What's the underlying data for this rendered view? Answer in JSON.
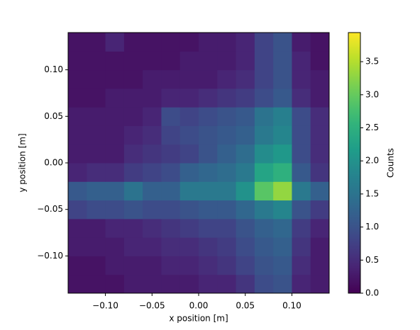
{
  "chart_data": {
    "type": "heatmap",
    "x_label": "x position [m]",
    "y_label": "y position [m]",
    "colorbar_label": "Counts",
    "colormap": "viridis",
    "xlim": [
      -0.14,
      0.14
    ],
    "ylim": [
      -0.14,
      0.14
    ],
    "clim": [
      0,
      3.94
    ],
    "xticks": [
      {
        "value": -0.1,
        "label": "−0.10"
      },
      {
        "value": -0.05,
        "label": "−0.05"
      },
      {
        "value": 0,
        "label": "0.00"
      },
      {
        "value": 0.05,
        "label": "0.05"
      },
      {
        "value": 0.1,
        "label": "0.10"
      }
    ],
    "yticks": [
      {
        "value": -0.1,
        "label": "−0.10"
      },
      {
        "value": -0.05,
        "label": "−0.05"
      },
      {
        "value": 0,
        "label": "0.00"
      },
      {
        "value": 0.05,
        "label": "0.05"
      },
      {
        "value": 0.1,
        "label": "0.10"
      }
    ],
    "cticks": [
      {
        "value": 0,
        "label": "0.0"
      },
      {
        "value": 0.5,
        "label": "0.5"
      },
      {
        "value": 1,
        "label": "1.0"
      },
      {
        "value": 1.5,
        "label": "1.5"
      },
      {
        "value": 2,
        "label": "2.0"
      },
      {
        "value": 2.5,
        "label": "2.5"
      },
      {
        "value": 3,
        "label": "3.0"
      },
      {
        "value": 3.5,
        "label": "3.5"
      }
    ],
    "x_bins": [
      -0.14,
      -0.12,
      -0.1,
      -0.08,
      -0.06,
      -0.04,
      -0.02,
      0,
      0.02,
      0.04,
      0.06,
      0.08,
      0.1,
      0.12,
      0.14
    ],
    "y_bins": [
      -0.14,
      -0.12,
      -0.1,
      -0.08,
      -0.06,
      -0.04,
      -0.02,
      0,
      0.02,
      0.04,
      0.06,
      0.08,
      0.1,
      0.12,
      0.14
    ],
    "z": [
      [
        0.2,
        0.2,
        0.2,
        0.3,
        0.3,
        0.3,
        0.3,
        0.4,
        0.4,
        0.6,
        0.9,
        1.0,
        0.4,
        0.3
      ],
      [
        0.2,
        0.2,
        0.3,
        0.3,
        0.3,
        0.4,
        0.4,
        0.5,
        0.6,
        0.8,
        1.0,
        1.1,
        0.5,
        0.3
      ],
      [
        0.3,
        0.3,
        0.3,
        0.4,
        0.4,
        0.5,
        0.5,
        0.6,
        0.7,
        0.9,
        1.1,
        1.2,
        0.6,
        0.3
      ],
      [
        0.3,
        0.3,
        0.4,
        0.4,
        0.5,
        0.6,
        0.7,
        0.8,
        0.8,
        1.0,
        1.2,
        1.3,
        0.7,
        0.4
      ],
      [
        0.8,
        0.9,
        0.9,
        1.0,
        0.9,
        0.9,
        1.0,
        1.1,
        1.1,
        1.3,
        1.6,
        1.8,
        1.0,
        0.7
      ],
      [
        1.1,
        1.2,
        1.2,
        1.5,
        1.2,
        1.2,
        1.6,
        1.6,
        1.6,
        2.0,
        2.9,
        3.3,
        1.6,
        1.2
      ],
      [
        0.4,
        0.5,
        0.5,
        0.7,
        0.8,
        0.9,
        1.2,
        1.3,
        1.4,
        1.6,
        2.3,
        2.5,
        1.1,
        0.6
      ],
      [
        0.3,
        0.3,
        0.3,
        0.5,
        0.6,
        0.7,
        0.8,
        1.0,
        1.2,
        1.4,
        1.9,
        2.1,
        0.9,
        0.5
      ],
      [
        0.3,
        0.3,
        0.3,
        0.4,
        0.5,
        0.8,
        0.9,
        1.0,
        1.1,
        1.2,
        1.6,
        1.8,
        0.9,
        0.5
      ],
      [
        0.3,
        0.3,
        0.3,
        0.3,
        0.4,
        0.9,
        0.8,
        0.9,
        1.0,
        1.1,
        1.5,
        1.7,
        0.9,
        0.5
      ],
      [
        0.2,
        0.2,
        0.3,
        0.3,
        0.3,
        0.4,
        0.4,
        0.5,
        0.6,
        0.7,
        0.9,
        1.1,
        0.5,
        0.3
      ],
      [
        0.2,
        0.2,
        0.2,
        0.2,
        0.3,
        0.3,
        0.3,
        0.3,
        0.4,
        0.5,
        0.8,
        1.0,
        0.4,
        0.3
      ],
      [
        0.2,
        0.2,
        0.2,
        0.2,
        0.2,
        0.2,
        0.3,
        0.3,
        0.3,
        0.4,
        0.8,
        1.0,
        0.4,
        0.2
      ],
      [
        0.2,
        0.2,
        0.4,
        0.2,
        0.2,
        0.2,
        0.2,
        0.3,
        0.3,
        0.4,
        0.8,
        1.0,
        0.3,
        0.2
      ]
    ]
  }
}
